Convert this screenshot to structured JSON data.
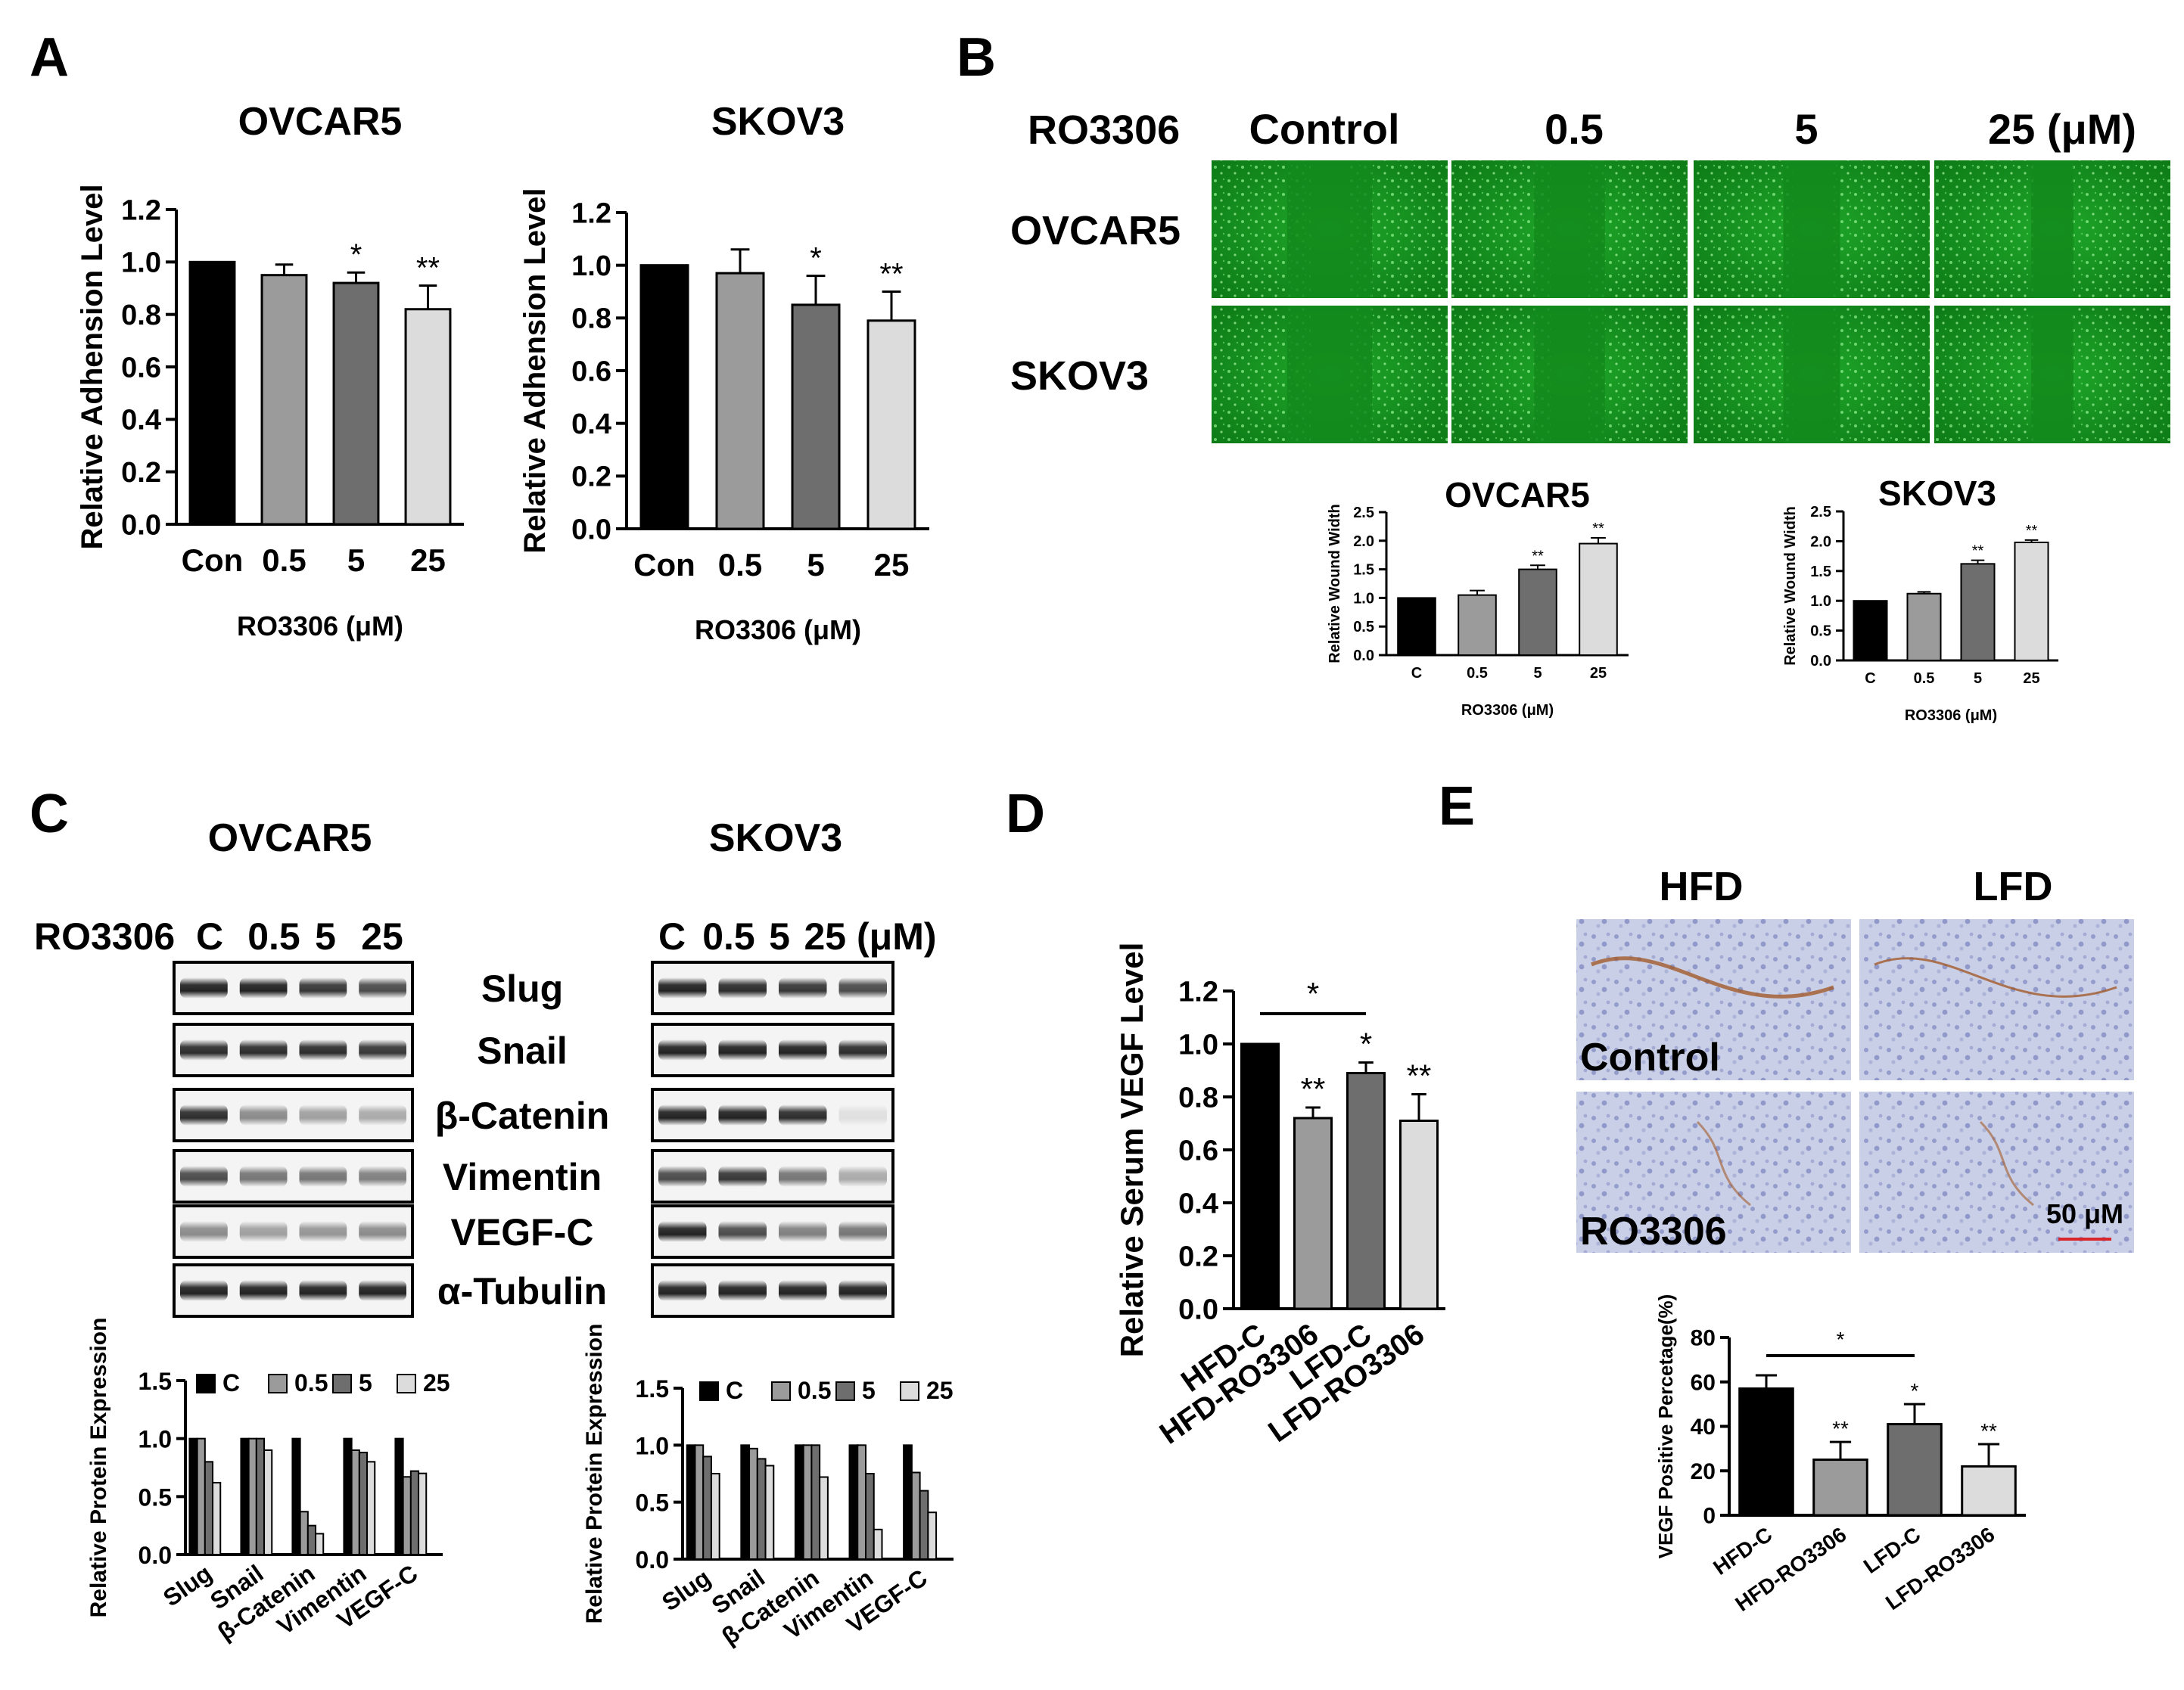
{
  "panel_labels": {
    "a": "A",
    "b": "B",
    "c": "C",
    "d": "D",
    "e": "E"
  },
  "panel_a": {
    "charts": [
      {
        "title": "OVCAR5",
        "ylabel": "Relative Adhension Level",
        "xlabel": "RO3306  (μM)",
        "categories": [
          "Con",
          "0.5",
          "5",
          "25"
        ],
        "values": [
          1.0,
          0.95,
          0.92,
          0.82
        ],
        "errors": [
          0,
          0.04,
          0.04,
          0.09
        ],
        "sig": [
          "",
          "",
          "*",
          "**"
        ],
        "ylim": [
          0,
          1.2
        ],
        "yticks": [
          "0.0",
          "0.2",
          "0.4",
          "0.6",
          "0.8",
          "1.0",
          "1.2"
        ]
      },
      {
        "title": "SKOV3",
        "ylabel": "Relative Adhension Level",
        "xlabel": "RO3306  (μM)",
        "categories": [
          "Con",
          "0.5",
          "5",
          "25"
        ],
        "values": [
          1.0,
          0.97,
          0.85,
          0.79
        ],
        "errors": [
          0,
          0.09,
          0.11,
          0.11
        ],
        "sig": [
          "",
          "",
          "*",
          "**"
        ],
        "ylim": [
          0,
          1.2
        ],
        "yticks": [
          "0.0",
          "0.2",
          "0.4",
          "0.6",
          "0.8",
          "1.0",
          "1.2"
        ]
      }
    ]
  },
  "panel_b": {
    "row_header": "RO3306",
    "columns": [
      "Control",
      "0.5",
      "5",
      "25 (μM)"
    ],
    "rows": [
      "OVCAR5",
      "SKOV3"
    ],
    "charts": [
      {
        "title": "OVCAR5",
        "ylabel": "Relative Wound Width",
        "xlabel": "RO3306  (μM)",
        "categories": [
          "C",
          "0.5",
          "5",
          "25"
        ],
        "values": [
          1.0,
          1.05,
          1.5,
          1.95
        ],
        "errors": [
          0,
          0.08,
          0.07,
          0.1
        ],
        "sig": [
          "",
          "",
          "**",
          "**"
        ],
        "ylim": [
          0,
          2.5
        ],
        "yticks": [
          "0.0",
          "0.5",
          "1.0",
          "1.5",
          "2.0",
          "2.5"
        ]
      },
      {
        "title": "SKOV3",
        "ylabel": "Relative Wound Width",
        "xlabel": "RO3306  (μM)",
        "categories": [
          "C",
          "0.5",
          "5",
          "25"
        ],
        "values": [
          1.0,
          1.12,
          1.62,
          1.98
        ],
        "errors": [
          0,
          0.03,
          0.06,
          0.04
        ],
        "sig": [
          "",
          "",
          "**",
          "**"
        ],
        "ylim": [
          0,
          2.5
        ],
        "yticks": [
          "0.0",
          "0.5",
          "1.0",
          "1.5",
          "2.0",
          "2.5"
        ]
      }
    ]
  },
  "panel_c": {
    "blots": [
      {
        "title": "OVCAR5",
        "lane_header": "RO3306",
        "lanes": [
          "C",
          "0.5",
          "5",
          "25"
        ]
      },
      {
        "title": "SKOV3",
        "lane_header": "",
        "lanes": [
          "C",
          "0.5",
          "5",
          "25 (μM)"
        ]
      }
    ],
    "proteins": [
      "Slug",
      "Snail",
      "β-Catenin",
      "Vimentin",
      "VEGF-C",
      "α-Tubulin"
    ],
    "charts": [
      {
        "ylabel": "Relative Protein Expression",
        "legend": [
          "C",
          "0.5",
          "5",
          "25"
        ],
        "categories": [
          "Slug",
          "Snail",
          "β-Catenin",
          "Vimentin",
          "VEGF-C"
        ],
        "series": [
          [
            1.0,
            1.0,
            1.0,
            1.0,
            1.0
          ],
          [
            1.0,
            1.0,
            0.37,
            0.9,
            0.67
          ],
          [
            0.8,
            1.0,
            0.25,
            0.88,
            0.72
          ],
          [
            0.62,
            0.9,
            0.18,
            0.8,
            0.7
          ]
        ],
        "ylim": [
          0,
          1.5
        ],
        "yticks": [
          "0.0",
          "0.5",
          "1.0",
          "1.5"
        ]
      },
      {
        "ylabel": "Relative Protein Expression",
        "legend": [
          "C",
          "0.5",
          "5",
          "25"
        ],
        "categories": [
          "Slug",
          "Snail",
          "β-Catenin",
          "Vimentin",
          "VEGF-C"
        ],
        "series": [
          [
            1.0,
            1.0,
            1.0,
            1.0,
            1.0
          ],
          [
            1.0,
            0.97,
            1.0,
            1.0,
            0.76
          ],
          [
            0.9,
            0.88,
            1.0,
            0.75,
            0.6
          ],
          [
            0.75,
            0.82,
            0.72,
            0.26,
            0.41
          ]
        ],
        "ylim": [
          0,
          1.5
        ],
        "yticks": [
          "0.0",
          "0.5",
          "1.0",
          "1.5"
        ]
      }
    ]
  },
  "panel_d": {
    "ylabel": "Relative Serum VEGF Level",
    "categories": [
      "HFD-C",
      "HFD-RO3306",
      "LFD-C",
      "LFD-RO3306"
    ],
    "values": [
      1.0,
      0.72,
      0.89,
      0.71
    ],
    "errors": [
      0,
      0.04,
      0.04,
      0.1
    ],
    "sig": [
      "",
      "**",
      "*",
      "**"
    ],
    "bracket_sig": "*",
    "ylim": [
      0,
      1.2
    ],
    "yticks": [
      "0.0",
      "0.2",
      "0.4",
      "0.6",
      "0.8",
      "1.0",
      "1.2"
    ]
  },
  "panel_e": {
    "columns": [
      "HFD",
      "LFD"
    ],
    "row_labels": [
      "Control",
      "RO3306"
    ],
    "scale_label": "50 μM",
    "ylabel": "VEGF Positive Percetage(%)",
    "categories": [
      "HFD-C",
      "HFD-RO3306",
      "LFD-C",
      "LFD-RO3306"
    ],
    "values": [
      57,
      25,
      41,
      22
    ],
    "errors": [
      6,
      8,
      9,
      10
    ],
    "sig": [
      "",
      "**",
      "*",
      "**"
    ],
    "bracket_sig": "*",
    "ylim": [
      0,
      80
    ],
    "yticks": [
      "0",
      "20",
      "40",
      "60",
      "80"
    ]
  },
  "chart_data": [
    {
      "type": "bar",
      "title": "OVCAR5",
      "categories": [
        "Con",
        "0.5",
        "5",
        "25"
      ],
      "values": [
        1.0,
        0.95,
        0.92,
        0.82
      ],
      "ylabel": "Relative Adhension Level",
      "xlabel": "RO3306  (μM)",
      "ylim": [
        0,
        1.2
      ]
    },
    {
      "type": "bar",
      "title": "SKOV3",
      "categories": [
        "Con",
        "0.5",
        "5",
        "25"
      ],
      "values": [
        1.0,
        0.97,
        0.85,
        0.79
      ],
      "ylabel": "Relative Adhension Level",
      "xlabel": "RO3306  (μM)",
      "ylim": [
        0,
        1.2
      ]
    },
    {
      "type": "bar",
      "title": "OVCAR5",
      "categories": [
        "C",
        "0.5",
        "5",
        "25"
      ],
      "values": [
        1.0,
        1.05,
        1.5,
        1.95
      ],
      "ylabel": "Relative Wound Width",
      "xlabel": "RO3306  (μM)",
      "ylim": [
        0,
        2.5
      ]
    },
    {
      "type": "bar",
      "title": "SKOV3",
      "categories": [
        "C",
        "0.5",
        "5",
        "25"
      ],
      "values": [
        1.0,
        1.12,
        1.62,
        1.98
      ],
      "ylabel": "Relative Wound Width",
      "xlabel": "RO3306  (μM)",
      "ylim": [
        0,
        2.5
      ]
    },
    {
      "type": "bar",
      "categories": [
        "Slug",
        "Snail",
        "β-Catenin",
        "Vimentin",
        "VEGF-C"
      ],
      "series": [
        {
          "name": "C",
          "values": [
            1.0,
            1.0,
            1.0,
            1.0,
            1.0
          ]
        },
        {
          "name": "0.5",
          "values": [
            1.0,
            1.0,
            0.37,
            0.9,
            0.67
          ]
        },
        {
          "name": "5",
          "values": [
            0.8,
            1.0,
            0.25,
            0.88,
            0.72
          ]
        },
        {
          "name": "25",
          "values": [
            0.62,
            0.9,
            0.18,
            0.8,
            0.7
          ]
        }
      ],
      "ylabel": "Relative Protein Expression",
      "ylim": [
        0,
        1.5
      ]
    },
    {
      "type": "bar",
      "categories": [
        "Slug",
        "Snail",
        "β-Catenin",
        "Vimentin",
        "VEGF-C"
      ],
      "series": [
        {
          "name": "C",
          "values": [
            1.0,
            1.0,
            1.0,
            1.0,
            1.0
          ]
        },
        {
          "name": "0.5",
          "values": [
            1.0,
            0.97,
            1.0,
            1.0,
            0.76
          ]
        },
        {
          "name": "5",
          "values": [
            0.9,
            0.88,
            1.0,
            0.75,
            0.6
          ]
        },
        {
          "name": "25",
          "values": [
            0.75,
            0.82,
            0.72,
            0.26,
            0.41
          ]
        }
      ],
      "ylabel": "Relative Protein Expression",
      "ylim": [
        0,
        1.5
      ]
    },
    {
      "type": "bar",
      "categories": [
        "HFD-C",
        "HFD-RO3306",
        "LFD-C",
        "LFD-RO3306"
      ],
      "values": [
        1.0,
        0.72,
        0.89,
        0.71
      ],
      "ylabel": "Relative Serum VEGF Level",
      "ylim": [
        0,
        1.2
      ]
    },
    {
      "type": "bar",
      "categories": [
        "HFD-C",
        "HFD-RO3306",
        "LFD-C",
        "LFD-RO3306"
      ],
      "values": [
        57,
        25,
        41,
        22
      ],
      "ylabel": "VEGF Positive Percetage(%)",
      "ylim": [
        0,
        80
      ]
    }
  ]
}
